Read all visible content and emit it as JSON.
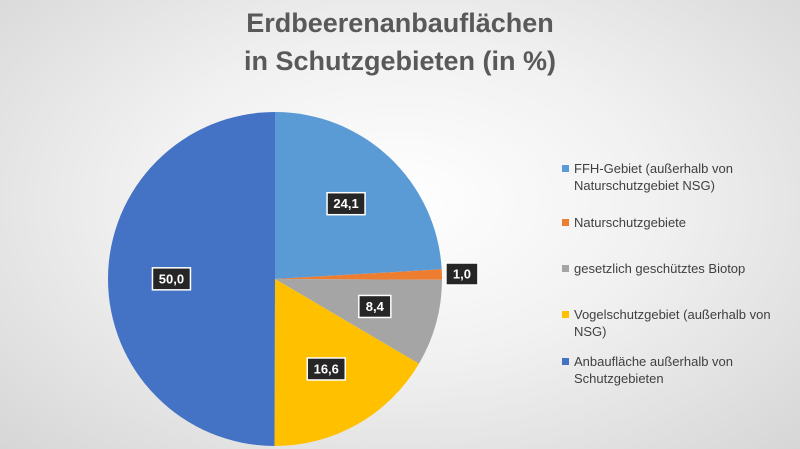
{
  "chart_data": {
    "type": "pie",
    "title": [
      "Erdbeerenanbauflächen",
      "in Schutzgebieten (in %)"
    ],
    "slices": [
      {
        "label": "FFH-Gebiet (außerhalb von Naturschutzgebiet NSG)",
        "value": 24.1,
        "display": "24,1",
        "color": "#5B9BD5"
      },
      {
        "label": "Naturschutzgebiete",
        "value": 1.0,
        "display": "1,0",
        "color": "#ED7D31"
      },
      {
        "label": "gesetzlich geschütztes Biotop",
        "value": 8.4,
        "display": "8,4",
        "color": "#A5A5A5"
      },
      {
        "label": "Vogelschutzgebiet (außerhalb von NSG)",
        "value": 16.6,
        "display": "16,6",
        "color": "#FFC000"
      },
      {
        "label": "Anbaufläche außerhalb von Schutzgebieten",
        "value": 50.0,
        "display": "50,0",
        "color": "#4472C4"
      }
    ],
    "start_angle": "12 o'clock",
    "direction": "clockwise",
    "legend_position": "right"
  }
}
